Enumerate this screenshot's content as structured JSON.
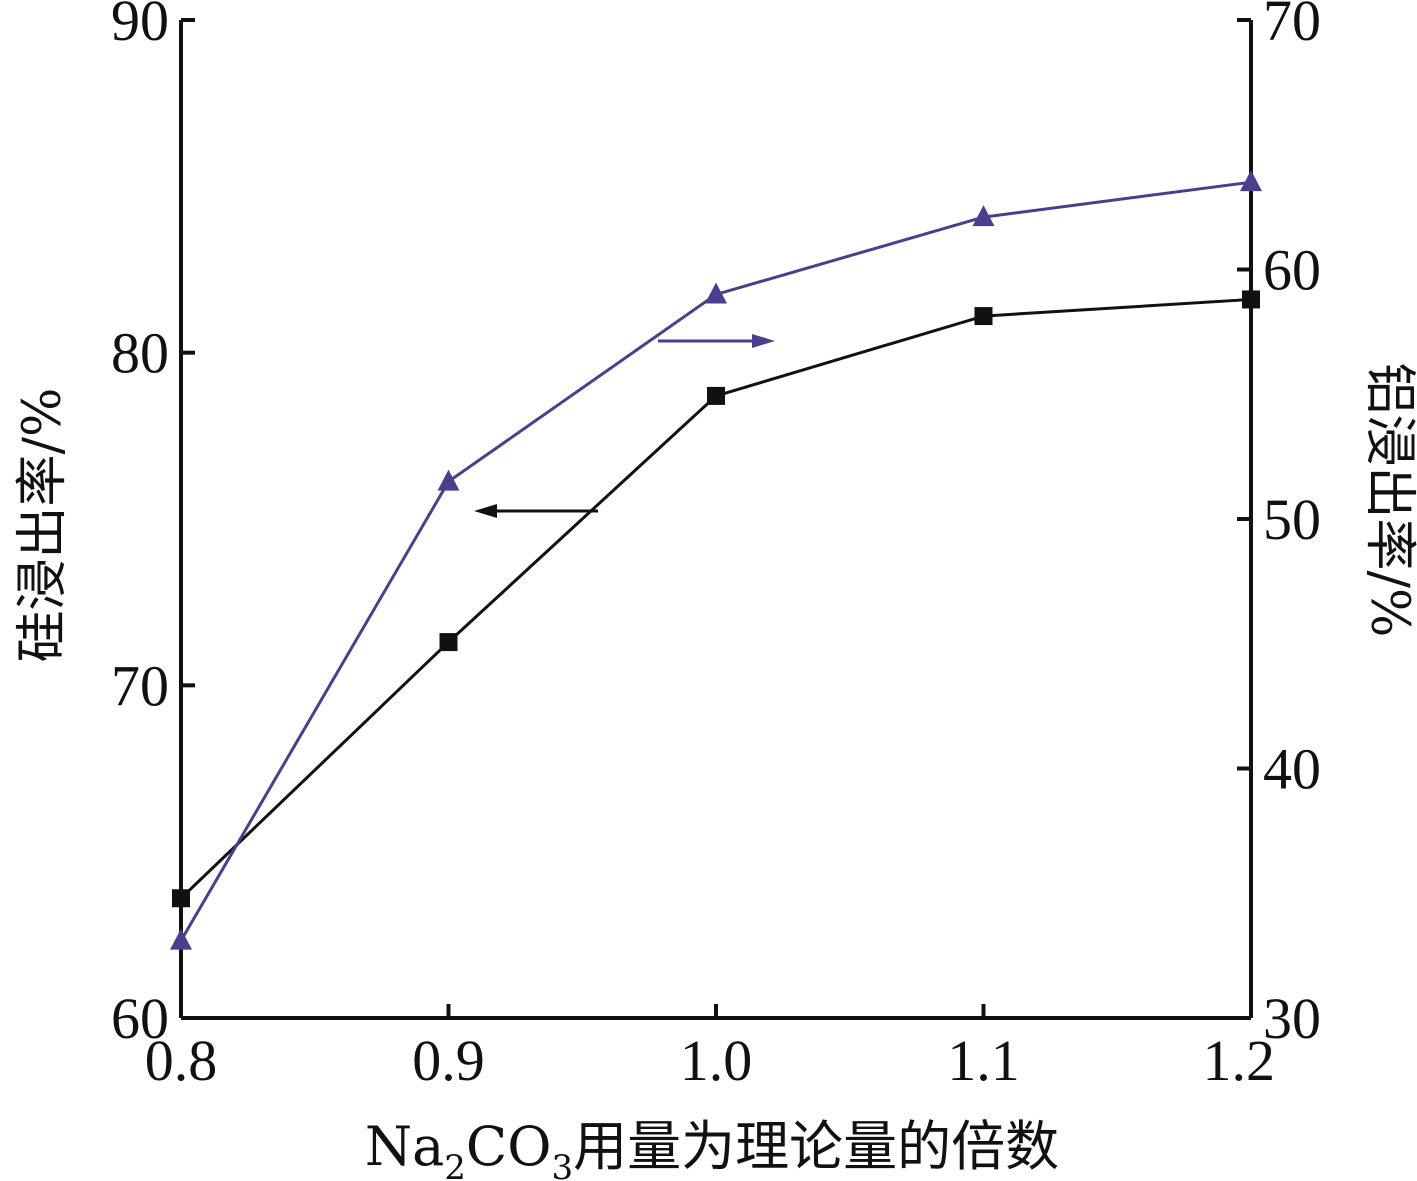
{
  "chart_data": {
    "type": "line",
    "xlabel": "Na2CO3用量为理论量的倍数",
    "xlabel_parts": {
      "pre": "Na",
      "sub1": "2",
      "mid": "CO",
      "sub2": "3",
      "post": "用量为理论量的倍数"
    },
    "ylabel_left": "硅浸出率/%",
    "ylabel_right": "铝浸出率/%",
    "x": [
      0.8,
      0.9,
      1.0,
      1.1,
      1.2
    ],
    "x_ticks": [
      "0.8",
      "0.9",
      "1.0",
      "1.1",
      "1.2"
    ],
    "xlim": [
      0.8,
      1.2
    ],
    "ylim_left": [
      60,
      90
    ],
    "ylim_right": [
      30,
      70
    ],
    "y_ticks_left": [
      60,
      70,
      80,
      90
    ],
    "y_ticks_right": [
      30,
      40,
      50,
      60,
      70
    ],
    "grid": false,
    "series": [
      {
        "axis": "left",
        "marker": "square",
        "color": "#111111",
        "values": [
          63.6,
          71.3,
          78.7,
          81.1,
          81.6
        ]
      },
      {
        "axis": "right",
        "marker": "triangle",
        "color": "#4a3f8c",
        "values": [
          33.1,
          51.5,
          59.0,
          62.1,
          63.5
        ]
      }
    ]
  }
}
